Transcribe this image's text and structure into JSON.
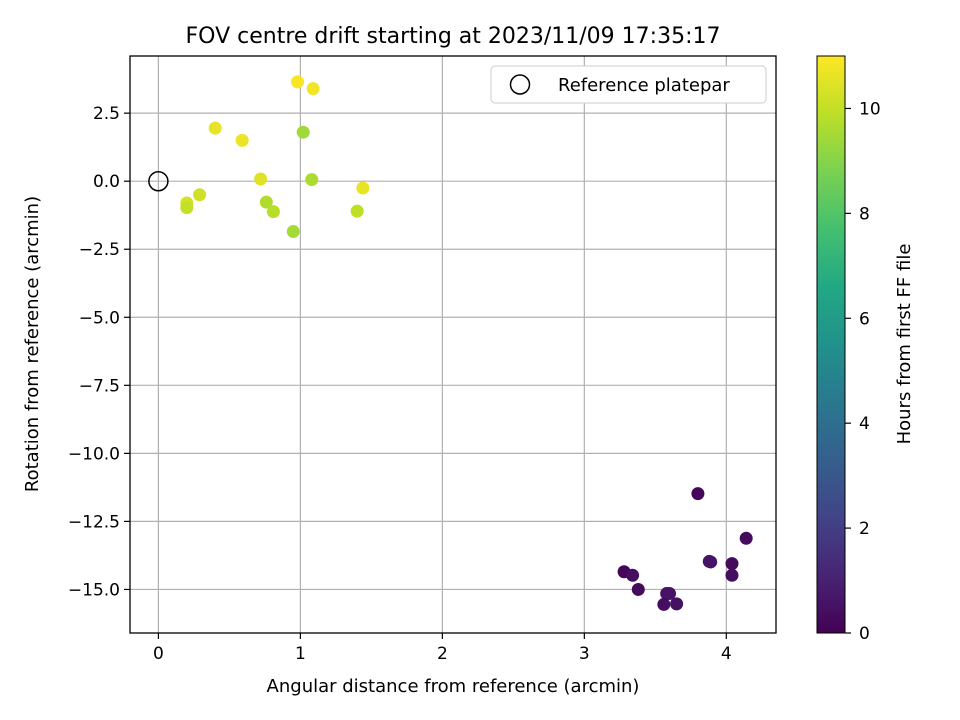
{
  "chart_data": {
    "type": "scatter",
    "title": "FOV centre drift starting at 2023/11/09 17:35:17",
    "xlabel": "Angular distance from reference (arcmin)",
    "ylabel": "Rotation from reference (arcmin)",
    "xlim": [
      -0.2,
      4.35
    ],
    "ylim": [
      -16.6,
      4.6
    ],
    "xticks": [
      0,
      1,
      2,
      3,
      4
    ],
    "yticks": [
      2.5,
      0.0,
      -2.5,
      -5.0,
      -7.5,
      -10.0,
      -12.5,
      -15.0
    ],
    "ytick_labels": [
      "2.5",
      "0.0",
      "−2.5",
      "−5.0",
      "−7.5",
      "−10.0",
      "−12.5",
      "−15.0"
    ],
    "grid": true,
    "legend": {
      "position": "top-right",
      "entries": [
        "Reference platepar"
      ]
    },
    "reference_point": {
      "x": 0.0,
      "y": 0.0
    },
    "colorbar": {
      "label": "Hours from first FF file",
      "range": [
        0,
        11
      ],
      "ticks": [
        0,
        2,
        4,
        6,
        8,
        10
      ],
      "colormap": "viridis"
    },
    "points": [
      {
        "x": 0.98,
        "y": 3.65,
        "c": 10.9
      },
      {
        "x": 1.09,
        "y": 3.4,
        "c": 10.8
      },
      {
        "x": 0.4,
        "y": 1.95,
        "c": 10.6
      },
      {
        "x": 0.59,
        "y": 1.5,
        "c": 10.7
      },
      {
        "x": 1.02,
        "y": 1.8,
        "c": 9.4
      },
      {
        "x": 0.72,
        "y": 0.08,
        "c": 10.5
      },
      {
        "x": 1.08,
        "y": 0.06,
        "c": 9.6
      },
      {
        "x": 1.44,
        "y": -0.25,
        "c": 10.6
      },
      {
        "x": 0.29,
        "y": -0.5,
        "c": 10.2
      },
      {
        "x": 0.2,
        "y": -0.8,
        "c": 10.3
      },
      {
        "x": 0.2,
        "y": -0.97,
        "c": 10.0
      },
      {
        "x": 0.76,
        "y": -0.77,
        "c": 9.7
      },
      {
        "x": 0.81,
        "y": -1.12,
        "c": 9.8
      },
      {
        "x": 1.4,
        "y": -1.1,
        "c": 9.9
      },
      {
        "x": 0.95,
        "y": -1.85,
        "c": 9.5
      },
      {
        "x": 3.8,
        "y": -11.48,
        "c": 0.2
      },
      {
        "x": 4.14,
        "y": -13.12,
        "c": 0.3
      },
      {
        "x": 3.88,
        "y": -13.97,
        "c": 0.5
      },
      {
        "x": 3.89,
        "y": -13.99,
        "c": 0.6
      },
      {
        "x": 4.04,
        "y": -14.05,
        "c": 0.3
      },
      {
        "x": 4.04,
        "y": -14.48,
        "c": 0.4
      },
      {
        "x": 3.28,
        "y": -14.35,
        "c": 0.2
      },
      {
        "x": 3.34,
        "y": -14.48,
        "c": 0.4
      },
      {
        "x": 3.38,
        "y": -15.0,
        "c": 0.3
      },
      {
        "x": 3.58,
        "y": -15.15,
        "c": 0.5
      },
      {
        "x": 3.6,
        "y": -15.15,
        "c": 0.6
      },
      {
        "x": 3.56,
        "y": -15.55,
        "c": 0.4
      },
      {
        "x": 3.65,
        "y": -15.53,
        "c": 0.5
      }
    ]
  }
}
